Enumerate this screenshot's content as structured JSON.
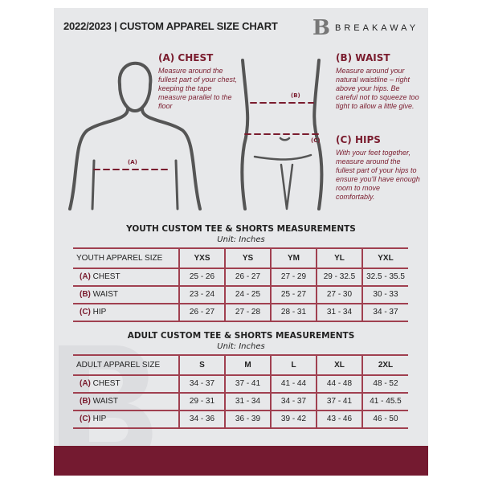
{
  "header": {
    "title": "2022/2023  |  CUSTOM APPAREL SIZE CHART",
    "brand": "BREAKAWAY",
    "logo_letter": "B"
  },
  "guide": {
    "chest": {
      "title": "(A) CHEST",
      "desc": "Measure around the fullest part of your chest, keeping the tape measure parallel to the floor",
      "marker": "(A)"
    },
    "waist": {
      "title": "(B) WAIST",
      "desc": "Measure around your natural waistline – right above your hips. Be careful not to squeeze too tight to allow a little give.",
      "marker": "(B)"
    },
    "hips": {
      "title": "(C) HIPS",
      "desc": "With your feet together, measure around the fullest part of your hips to ensure you'll have enough room to move comfortably.",
      "marker": "(C)"
    }
  },
  "youth": {
    "title": "YOUTH CUSTOM TEE & SHORTS MEASUREMENTS",
    "unit": "Unit: Inches",
    "header": "YOUTH APPAREL SIZE",
    "sizes": [
      "YXS",
      "YS",
      "YM",
      "YL",
      "YXL"
    ],
    "rows": [
      {
        "code": "(A)",
        "name": "CHEST",
        "values": [
          "25 - 26",
          "26 - 27",
          "27 - 29",
          "29 - 32.5",
          "32.5 - 35.5"
        ]
      },
      {
        "code": "(B)",
        "name": "WAIST",
        "values": [
          "23 - 24",
          "24 - 25",
          "25 - 27",
          "27 - 30",
          "30 - 33"
        ]
      },
      {
        "code": "(C)",
        "name": "HIP",
        "values": [
          "26 - 27",
          "27 - 28",
          "28 - 31",
          "31 - 34",
          "34 - 37"
        ]
      }
    ]
  },
  "adult": {
    "title": "ADULT CUSTOM TEE & SHORTS MEASUREMENTS",
    "unit": "Unit: Inches",
    "header": "ADULT APPAREL SIZE",
    "sizes": [
      "S",
      "M",
      "L",
      "XL",
      "2XL"
    ],
    "rows": [
      {
        "code": "(A)",
        "name": "CHEST",
        "values": [
          "34 - 37",
          "37 - 41",
          "41 - 44",
          "44 - 48",
          "48 - 52"
        ]
      },
      {
        "code": "(B)",
        "name": "WAIST",
        "values": [
          "29 - 31",
          "31 - 34",
          "34 - 37",
          "37 - 41",
          "41 - 45.5"
        ]
      },
      {
        "code": "(C)",
        "name": "HIP",
        "values": [
          "34 - 36",
          "36 - 39",
          "39 - 42",
          "43 - 46",
          "46 - 50"
        ]
      }
    ]
  },
  "colors": {
    "accent": "#741a30",
    "panel": "#e7e8ea"
  }
}
